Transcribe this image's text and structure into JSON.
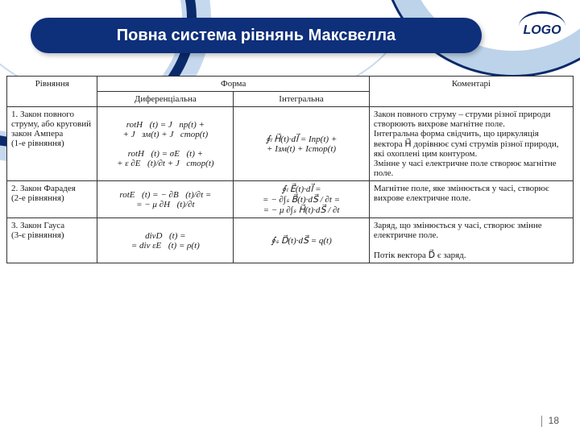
{
  "title": "Повна система рівнянь Максвелла",
  "logo_text": "LOGO",
  "page_number": "18",
  "table": {
    "head": {
      "eq": "Рівняння",
      "form": "Форма",
      "diff": "Диференціальна",
      "int": "Інтегральна",
      "com": "Коментарі"
    },
    "rows": [
      {
        "eq": "1. Закон повного струму, або кру­говий закон Ам­пера\n(1-е рівняння)",
        "diff": "rotH⃗(t) = J⃗пр(t) +\n+ J⃗зм(t) + J⃗стор(t)\n\nrotH⃗(t) = σE⃗(t) +\n+ ε ∂E⃗(t)/∂t + J⃗стор(t)",
        "int": "∮ₗ H⃗(t)·dl⃗ = Iпр(t) +\n+ Iзм(t) + Iстор(t)",
        "com": "Закон повного струму – струми різної природи створюють вихрове магнітне поле.\nІнтегральна форма свідчить, що циркуляція вектора H⃗ дорівнює сумі струмів різної природи, які охоплені цим контуром.\nЗмінне у часі електричне поле створює магнітне поле."
      },
      {
        "eq": "2. Закон Фарадея\n(2-е рівняння)",
        "diff": "rotE⃗(t) = − ∂B⃗(t)/∂t =\n= − μ ∂H⃗(t)/∂t",
        "int": "∮ₗ E⃗(t)·dl⃗ =\n= − ∂∫ₛ B⃗(t)·dS⃗ / ∂t =\n= − μ ∂∫ₛ H⃗(t)·dS⃗ / ∂t",
        "com": "Магнітне поле, яке змінюється у часі, створює вихрове електрич­не поле."
      },
      {
        "eq": "3. Закон Гауса\n(3-є рівняння)",
        "diff": "divD⃗(t) =\n= div εE⃗(t) = ρ(t)",
        "int": "∮ₛ D⃗(t)·dS⃗ = q(t)",
        "com": "Заряд, що змінюється у часі, створює змінне електричне поле.\n\nПотік вектора D⃗ є заряд."
      }
    ]
  }
}
